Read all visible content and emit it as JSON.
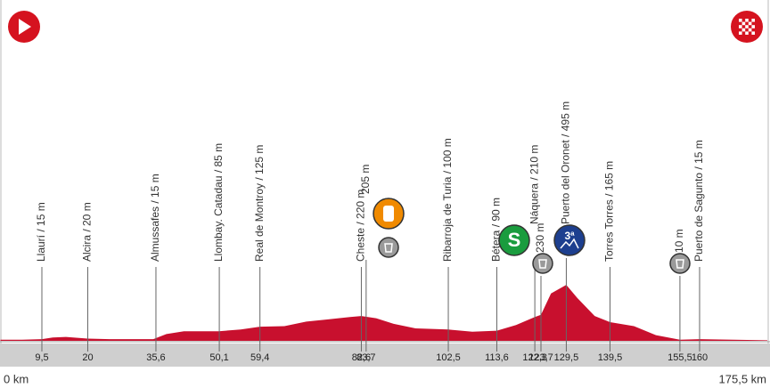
{
  "chart_data": {
    "type": "profile",
    "start": {
      "value": 0,
      "label": "0 km"
    },
    "end": {
      "value": 175.5,
      "label": "175,5 km"
    },
    "color": "#c8102e",
    "waypoints": [
      {
        "label": "Llaurí / 15 m",
        "km": {
          "value": 9.5,
          "label": "9,5"
        }
      },
      {
        "label": "Alcira / 20 m",
        "km": 20
      },
      {
        "label": "Almussafes / 15 m",
        "km": {
          "value": 35.6,
          "label": "35,6"
        }
      },
      {
        "label": "Llombay. Catadau / 85 m",
        "km": {
          "value": 50.1,
          "label": "50,1"
        }
      },
      {
        "label": "Real de Montroy / 125 m",
        "km": {
          "value": 59.4,
          "label": "59,4"
        }
      },
      {
        "label": "Cheste / 220 m",
        "km": {
          "value": 82.6,
          "label": "82,6"
        }
      },
      {
        "label": "205 m",
        "km": {
          "value": 83.7,
          "label": "83,7"
        }
      },
      {
        "label": "Ribarroja de Turia / 100 m",
        "km": {
          "value": 102.5,
          "label": "102,5"
        }
      },
      {
        "label": "Bétera / 90 m",
        "km": {
          "value": 113.6,
          "label": "113,6"
        }
      },
      {
        "label": "Náquera / 210 m",
        "km": {
          "value": 122.3,
          "label": "122,3"
        },
        "badge": "S"
      },
      {
        "label": "230 m",
        "km": {
          "value": 123.7,
          "label": "123,7"
        }
      },
      {
        "label": "Puerto del Oronet / 495 m",
        "km": {
          "value": 129.5,
          "label": "129,5"
        },
        "badge": "3ª"
      },
      {
        "label": "Torres Torres / 165 m",
        "km": {
          "value": 139.5,
          "label": "139,5"
        }
      },
      {
        "label": "10 m",
        "km": {
          "value": 155.5,
          "label": "155,5"
        }
      },
      {
        "label": "Puerto de Sagunto / 15 m",
        "km": 160
      }
    ],
    "profile": {
      "km": [
        0,
        5,
        9.5,
        12,
        15,
        20,
        25,
        35,
        38,
        42,
        50,
        55,
        59.4,
        65,
        70,
        75,
        80,
        82.6,
        86,
        90,
        95,
        102.5,
        108,
        113.6,
        118,
        122.3,
        123.7,
        126,
        129.5,
        132,
        136,
        139.5,
        145,
        150,
        155.5,
        160,
        175.5
      ],
      "elevation": [
        10,
        10,
        15,
        30,
        35,
        20,
        15,
        15,
        60,
        85,
        85,
        100,
        125,
        130,
        170,
        190,
        210,
        220,
        200,
        150,
        110,
        100,
        80,
        90,
        140,
        210,
        230,
        420,
        495,
        380,
        220,
        165,
        130,
        50,
        10,
        15,
        5
      ]
    }
  }
}
